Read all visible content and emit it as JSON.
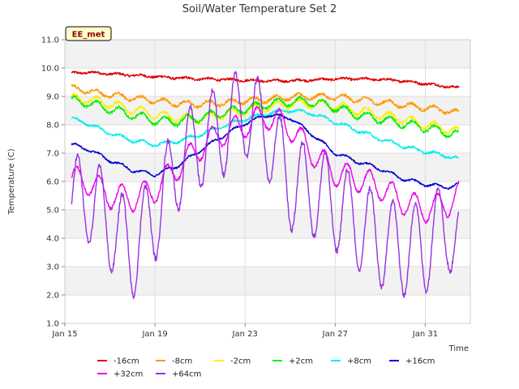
{
  "chart_data": {
    "type": "line",
    "title": "Soil/Water Temperature Set 2",
    "xlabel": "Time",
    "ylabel": "Temperature (C)",
    "badge": "EE_met",
    "x_ticks": [
      {
        "day": 0,
        "label": "Jan 15"
      },
      {
        "day": 4,
        "label": "Jan 19"
      },
      {
        "day": 8,
        "label": "Jan 23"
      },
      {
        "day": 12,
        "label": "Jan 27"
      },
      {
        "day": 16,
        "label": "Jan 31"
      }
    ],
    "xlim": [
      0,
      18
    ],
    "ylim": [
      1.0,
      11.0
    ],
    "y_ticks": [
      "1.0",
      "2.0",
      "3.0",
      "4.0",
      "5.0",
      "6.0",
      "7.0",
      "8.0",
      "9.0",
      "10.0",
      "11.0"
    ],
    "grid": true,
    "legend_position": "bottom",
    "series": [
      {
        "name": "-16cm",
        "color": "#dd0000",
        "noise": 0.04,
        "daily_amp": 0.03,
        "points": [
          [
            0.3,
            9.82
          ],
          [
            1,
            9.85
          ],
          [
            2,
            9.8
          ],
          [
            3,
            9.75
          ],
          [
            4,
            9.7
          ],
          [
            5,
            9.65
          ],
          [
            6,
            9.62
          ],
          [
            7,
            9.6
          ],
          [
            8,
            9.57
          ],
          [
            9,
            9.55
          ],
          [
            10,
            9.55
          ],
          [
            11,
            9.58
          ],
          [
            12,
            9.62
          ],
          [
            13,
            9.62
          ],
          [
            14,
            9.6
          ],
          [
            15,
            9.55
          ],
          [
            16,
            9.45
          ],
          [
            17,
            9.35
          ],
          [
            17.5,
            9.3
          ]
        ]
      },
      {
        "name": "-8cm",
        "color": "#ff9900",
        "noise": 0.05,
        "daily_amp": 0.1,
        "points": [
          [
            0.3,
            9.3
          ],
          [
            1,
            9.2
          ],
          [
            2,
            9.05
          ],
          [
            3,
            8.95
          ],
          [
            4,
            8.85
          ],
          [
            5,
            8.75
          ],
          [
            6,
            8.72
          ],
          [
            7,
            8.78
          ],
          [
            8,
            8.85
          ],
          [
            9,
            8.9
          ],
          [
            10,
            8.98
          ],
          [
            11,
            9.0
          ],
          [
            12,
            8.98
          ],
          [
            13,
            8.9
          ],
          [
            14,
            8.8
          ],
          [
            15,
            8.7
          ],
          [
            16,
            8.6
          ],
          [
            17,
            8.5
          ],
          [
            17.5,
            8.4
          ]
        ]
      },
      {
        "name": "-2cm",
        "color": "#ffee00",
        "noise": 0.05,
        "daily_amp": 0.15,
        "points": [
          [
            0.3,
            8.95
          ],
          [
            1,
            8.9
          ],
          [
            2,
            8.75
          ],
          [
            3,
            8.55
          ],
          [
            4,
            8.35
          ],
          [
            5,
            8.25
          ],
          [
            6,
            8.22
          ],
          [
            7,
            8.35
          ],
          [
            8,
            8.5
          ],
          [
            9,
            8.62
          ],
          [
            10,
            8.72
          ],
          [
            11,
            8.75
          ],
          [
            12,
            8.68
          ],
          [
            13,
            8.5
          ],
          [
            14,
            8.35
          ],
          [
            15,
            8.2
          ],
          [
            16,
            8.0
          ],
          [
            17,
            7.85
          ],
          [
            17.5,
            7.75
          ]
        ]
      },
      {
        "name": "+2cm",
        "color": "#00ee00",
        "noise": 0.05,
        "daily_amp": 0.15,
        "points": [
          [
            0.3,
            8.85
          ],
          [
            1,
            8.78
          ],
          [
            2,
            8.55
          ],
          [
            3,
            8.35
          ],
          [
            4,
            8.15
          ],
          [
            5,
            8.12
          ],
          [
            6,
            8.25
          ],
          [
            7,
            8.42
          ],
          [
            8,
            8.58
          ],
          [
            9,
            8.72
          ],
          [
            10,
            8.82
          ],
          [
            11,
            8.8
          ],
          [
            12,
            8.62
          ],
          [
            13,
            8.35
          ],
          [
            14,
            8.2
          ],
          [
            15,
            8.05
          ],
          [
            16,
            7.9
          ],
          [
            17,
            7.72
          ],
          [
            17.5,
            7.62
          ]
        ]
      },
      {
        "name": "+8cm",
        "color": "#00eeee",
        "noise": 0.04,
        "daily_amp": 0.06,
        "points": [
          [
            0.3,
            8.22
          ],
          [
            1,
            8.05
          ],
          [
            2,
            7.7
          ],
          [
            3,
            7.45
          ],
          [
            4,
            7.3
          ],
          [
            5,
            7.42
          ],
          [
            6,
            7.65
          ],
          [
            7,
            7.95
          ],
          [
            8,
            8.2
          ],
          [
            9,
            8.4
          ],
          [
            10,
            8.52
          ],
          [
            11,
            8.4
          ],
          [
            12,
            8.1
          ],
          [
            13,
            7.8
          ],
          [
            14,
            7.5
          ],
          [
            15,
            7.25
          ],
          [
            16,
            7.05
          ],
          [
            17,
            6.9
          ],
          [
            17.5,
            6.8
          ]
        ]
      },
      {
        "name": "+16cm",
        "color": "#0000cc",
        "noise": 0.03,
        "daily_amp": 0.06,
        "points": [
          [
            0.3,
            7.3
          ],
          [
            1,
            7.15
          ],
          [
            2,
            6.75
          ],
          [
            3,
            6.4
          ],
          [
            4,
            6.25
          ],
          [
            5,
            6.55
          ],
          [
            6,
            7.1
          ],
          [
            7,
            7.6
          ],
          [
            8,
            8.05
          ],
          [
            9,
            8.35
          ],
          [
            10,
            8.25
          ],
          [
            11,
            7.65
          ],
          [
            12,
            7.0
          ],
          [
            13,
            6.7
          ],
          [
            14,
            6.45
          ],
          [
            15,
            6.1
          ],
          [
            16,
            5.9
          ],
          [
            17,
            5.8
          ],
          [
            17.5,
            5.9
          ]
        ]
      },
      {
        "name": "+32cm",
        "color": "#ee00ee",
        "noise": 0.05,
        "daily_amp": 0.45,
        "points": [
          [
            0.3,
            6.1
          ],
          [
            1,
            6.0
          ],
          [
            2,
            5.5
          ],
          [
            3,
            5.4
          ],
          [
            4,
            5.7
          ],
          [
            5,
            6.5
          ],
          [
            6,
            7.2
          ],
          [
            7,
            7.7
          ],
          [
            8,
            8.0
          ],
          [
            9,
            8.3
          ],
          [
            10,
            7.9
          ],
          [
            11,
            7.0
          ],
          [
            12,
            6.3
          ],
          [
            13,
            6.1
          ],
          [
            14,
            5.8
          ],
          [
            15,
            5.3
          ],
          [
            16,
            5.0
          ],
          [
            17,
            5.2
          ],
          [
            17.5,
            5.6
          ]
        ]
      },
      {
        "name": "+64cm",
        "color": "#9933dd",
        "noise": 0.1,
        "daily_amp": 1.6,
        "points": [
          [
            0.3,
            5.2
          ],
          [
            1,
            5.5
          ],
          [
            2,
            4.5
          ],
          [
            3,
            3.5
          ],
          [
            4,
            4.8
          ],
          [
            5,
            6.6
          ],
          [
            6,
            7.4
          ],
          [
            7,
            7.8
          ],
          [
            8,
            8.5
          ],
          [
            9,
            7.7
          ],
          [
            10,
            5.9
          ],
          [
            11,
            5.7
          ],
          [
            12,
            5.2
          ],
          [
            13,
            4.5
          ],
          [
            14,
            3.9
          ],
          [
            15,
            3.6
          ],
          [
            16,
            3.7
          ],
          [
            17,
            4.6
          ],
          [
            17.5,
            3.4
          ]
        ]
      }
    ]
  }
}
